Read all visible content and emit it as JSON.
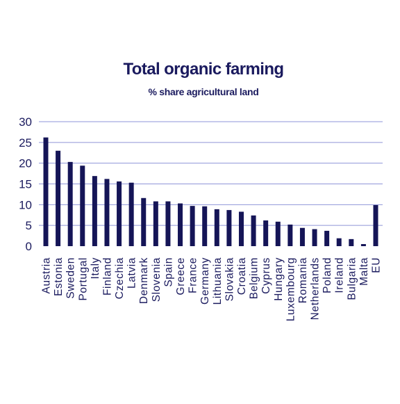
{
  "chart_data": {
    "type": "bar",
    "title": "Total organic farming",
    "subtitle": "% share agricultural land",
    "xlabel": "",
    "ylabel": "",
    "ylim": [
      0,
      30
    ],
    "yticks": [
      "0",
      "5",
      "10",
      "15",
      "20",
      "25",
      "30"
    ],
    "grid": true,
    "categories": [
      "Austria",
      "Estonia",
      "Sweden",
      "Portugal",
      "Italy",
      "Finland",
      "Czechia",
      "Latvia",
      "Denmark",
      "Slovenia",
      "Spain",
      "Greece",
      "France",
      "Germany",
      "Lithuania",
      "Slovakia",
      "Croatia",
      "Belgium",
      "Cyprus",
      "Hungary",
      "Luxembourg",
      "Romania",
      "Netherlands",
      "Poland",
      "Ireland",
      "Bulgaria",
      "Malta",
      "EU"
    ],
    "values": [
      26.2,
      23.0,
      20.3,
      19.4,
      16.9,
      16.2,
      15.6,
      15.3,
      11.6,
      10.8,
      10.8,
      10.3,
      9.7,
      9.6,
      8.9,
      8.7,
      8.3,
      7.4,
      6.2,
      5.9,
      5.2,
      4.4,
      4.1,
      3.7,
      1.9,
      1.7,
      0.5,
      9.9
    ],
    "colors": {
      "bar": "#151557",
      "text": "#1a1a5e",
      "grid": "#8f95d8"
    }
  }
}
